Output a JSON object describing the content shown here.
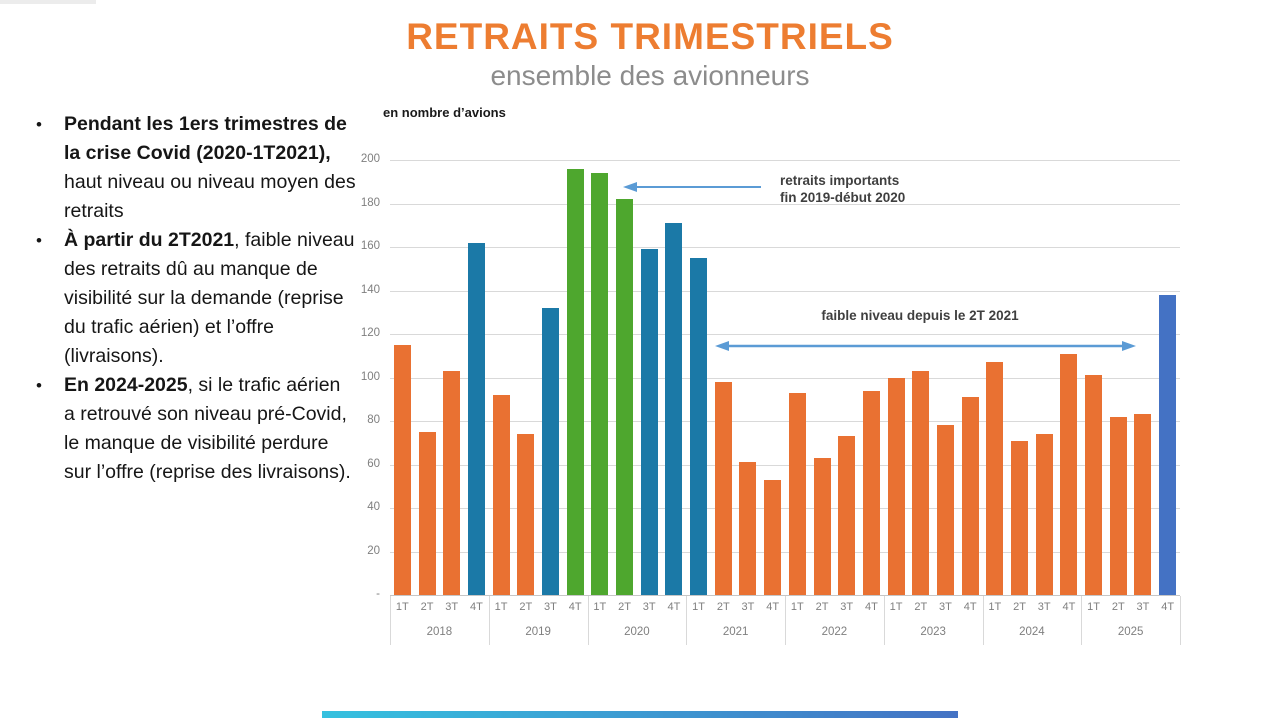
{
  "slide": {
    "title": "RETRAITS TRIMESTRIELS",
    "subtitle": "ensemble des avionneurs",
    "units_label": "en nombre d’avions"
  },
  "bullets": [
    {
      "bold": "Pendant les 1ers trimestres de la crise Covid (2020-1T2021),",
      "rest": " haut niveau ou niveau moyen des retraits"
    },
    {
      "bold": "À partir du 2T2021",
      "rest": ", faible niveau des retraits dû au manque de visibilité sur la demande (reprise du trafic aérien) et l’offre (livraisons)."
    },
    {
      "bold": "En 2024-2025",
      "rest": ", si le trafic aérien a retrouvé son niveau pré-Covid, le manque de visibilité perdure sur l’offre (reprise des livraisons)."
    }
  ],
  "annotations": {
    "annot1_line1": "retraits importants",
    "annot1_line2": "fin 2019-début 2020",
    "annot2_text": "faible niveau depuis le 2T 2021"
  },
  "colors": {
    "title_orange": "#ED7D31",
    "bar_orange": "#E97132",
    "bar_teal": "#1B79A7",
    "bar_green": "#4EA72E",
    "bar_royal_blue": "#4472C4",
    "arrow_blue": "#5B9BD5",
    "gridline": "#D9D9D9",
    "axis_text": "#7F7F7F",
    "subtitle_gray": "#8C8C8C"
  },
  "chart_data": {
    "type": "bar",
    "title": "RETRAITS TRIMESTRIELS",
    "subtitle": "ensemble des avionneurs",
    "ylabel": "en nombre d’avions",
    "xlabel": "",
    "ylim": [
      0,
      200
    ],
    "ytick_step": 20,
    "ytick_labels": [
      "-",
      "20",
      "40",
      "60",
      "80",
      "100",
      "120",
      "140",
      "160",
      "180",
      "200"
    ],
    "grid": true,
    "legend": "none",
    "quarter_labels": [
      "1T",
      "2T",
      "3T",
      "4T"
    ],
    "years": [
      {
        "year": "2018",
        "values": [
          115,
          75,
          103,
          162
        ],
        "colors": [
          "orange",
          "orange",
          "orange",
          "teal"
        ]
      },
      {
        "year": "2019",
        "values": [
          92,
          74,
          132,
          196
        ],
        "colors": [
          "orange",
          "orange",
          "teal",
          "green"
        ]
      },
      {
        "year": "2020",
        "values": [
          194,
          182,
          159,
          171
        ],
        "colors": [
          "green",
          "green",
          "teal",
          "teal"
        ]
      },
      {
        "year": "2021",
        "values": [
          155,
          98,
          61,
          53
        ],
        "colors": [
          "teal",
          "orange",
          "orange",
          "orange"
        ]
      },
      {
        "year": "2022",
        "values": [
          93,
          63,
          73,
          94
        ],
        "colors": [
          "orange",
          "orange",
          "orange",
          "orange"
        ]
      },
      {
        "year": "2023",
        "values": [
          100,
          103,
          78,
          91
        ],
        "colors": [
          "orange",
          "orange",
          "orange",
          "orange"
        ]
      },
      {
        "year": "2024",
        "values": [
          107,
          71,
          74,
          111
        ],
        "colors": [
          "orange",
          "orange",
          "orange",
          "orange"
        ]
      },
      {
        "year": "2025",
        "values": [
          101,
          82,
          83,
          138
        ],
        "colors": [
          "orange",
          "orange",
          "orange",
          "royal_blue"
        ]
      }
    ],
    "color_map": {
      "orange": "#E97132",
      "teal": "#1B79A7",
      "green": "#4EA72E",
      "royal_blue": "#4472C4"
    },
    "annotations": [
      {
        "text": "retraits importants fin 2019-début 2020",
        "target": "pointing left at 2T 2020 bars"
      },
      {
        "text": "faible niveau depuis le 2T 2021",
        "target": "double arrow spanning 2T 2021 to 3T 2025"
      }
    ]
  }
}
